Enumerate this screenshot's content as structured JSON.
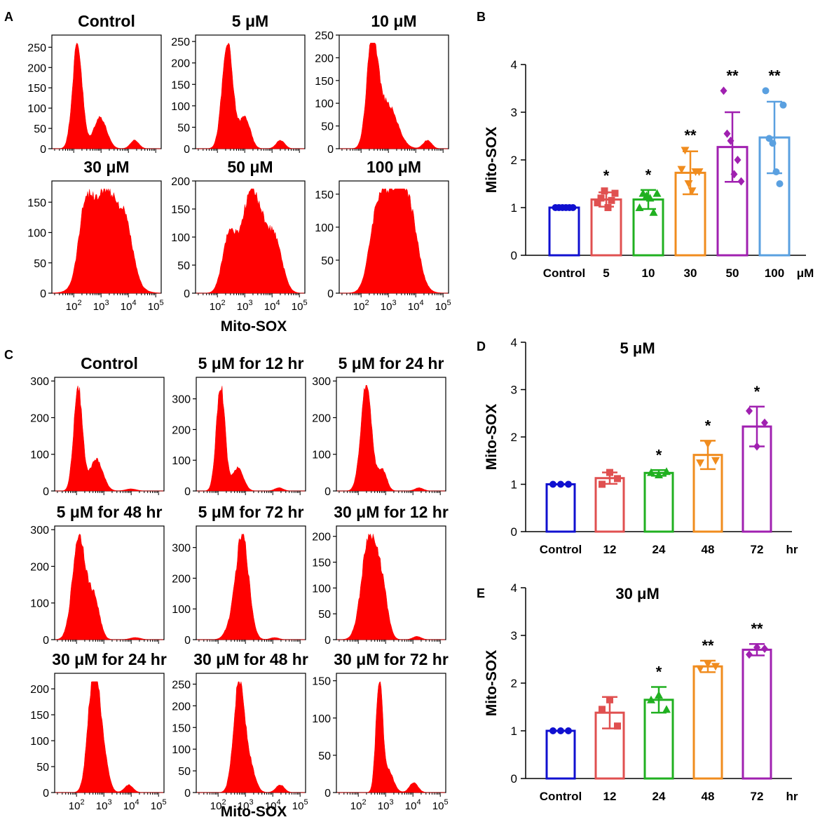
{
  "figure": {
    "colors": {
      "fill": "#ff0000",
      "axis": "#000000"
    },
    "panels": {
      "A": {
        "letter": "A",
        "xlabel": "Mito-SOX",
        "xticks": [
          "10^2",
          "10^3",
          "10^4",
          "10^5"
        ],
        "histograms": [
          {
            "title": "Control",
            "yticks": [
              0,
              50,
              100,
              150,
              200,
              250
            ]
          },
          {
            "title": "5 μM",
            "yticks": [
              0,
              50,
              100,
              150,
              200,
              250
            ]
          },
          {
            "title": "10 μM",
            "yticks": [
              0,
              50,
              100,
              150,
              200,
              250
            ]
          },
          {
            "title": "30 μM",
            "yticks": [
              0,
              50,
              100,
              150
            ]
          },
          {
            "title": "50 μM",
            "yticks": [
              0,
              50,
              100,
              150,
              200
            ]
          },
          {
            "title": "100 μM",
            "yticks": [
              0,
              50,
              100,
              150
            ]
          }
        ]
      },
      "C": {
        "letter": "C",
        "xlabel": "Mito-SOX",
        "xticks": [
          "10^2",
          "10^3",
          "10^4",
          "10^5"
        ],
        "histograms": [
          {
            "title": "Control",
            "yticks": [
              0,
              100,
              200,
              300
            ]
          },
          {
            "title": "5 μM for 12 hr",
            "yticks": [
              0,
              100,
              200,
              300
            ]
          },
          {
            "title": "5 μM for 24 hr",
            "yticks": [
              0,
              100,
              200,
              300
            ]
          },
          {
            "title": "5 μM for 48 hr",
            "yticks": [
              0,
              100,
              200,
              300
            ]
          },
          {
            "title": "5 μM for 72 hr",
            "yticks": [
              0,
              100,
              200,
              300
            ]
          },
          {
            "title": "30 μM for 12 hr",
            "yticks": [
              0,
              50,
              100,
              150,
              200
            ]
          },
          {
            "title": "30 μM for 24 hr",
            "yticks": [
              0,
              50,
              100,
              150,
              200
            ]
          },
          {
            "title": "30 μM for 48 hr",
            "yticks": [
              0,
              50,
              100,
              150,
              200,
              250
            ]
          },
          {
            "title": "30 μM for 72 hr",
            "yticks": [
              0,
              50,
              100,
              150
            ]
          }
        ]
      }
    }
  },
  "chart_data": [
    {
      "panel": "B",
      "type": "bar",
      "title": "",
      "ylabel": "Mito-SOX",
      "unit": "μM",
      "ylim": [
        0,
        4
      ],
      "yticks": [
        0,
        1,
        2,
        3,
        4
      ],
      "categories": [
        "Control",
        "5",
        "10",
        "30",
        "50",
        "100"
      ],
      "values": [
        1.0,
        1.17,
        1.17,
        1.73,
        2.27,
        2.47
      ],
      "errors": [
        0.0,
        0.15,
        0.2,
        0.45,
        0.73,
        0.75
      ],
      "points": [
        [
          1,
          1,
          1,
          1,
          1,
          1
        ],
        [
          1.1,
          1.2,
          1.35,
          1.0,
          1.15,
          1.3
        ],
        [
          1.0,
          1.3,
          1.25,
          1.2,
          0.9,
          1.3
        ],
        [
          1.8,
          2.2,
          1.5,
          1.35,
          1.75,
          1.75
        ],
        [
          3.45,
          2.55,
          2.4,
          1.7,
          2.0,
          1.55
        ],
        [
          3.45,
          2.45,
          2.35,
          1.75,
          1.5,
          3.15
        ]
      ],
      "significance": [
        "",
        "*",
        "*",
        "**",
        "**",
        "**"
      ],
      "colors": [
        "#1010d0",
        "#e05050",
        "#20b020",
        "#f08c1e",
        "#a020b0",
        "#5aa0e0"
      ]
    },
    {
      "panel": "D",
      "type": "bar",
      "title": "5 μM",
      "ylabel": "Mito-SOX",
      "unit": "hr",
      "ylim": [
        0,
        4
      ],
      "yticks": [
        0,
        1,
        2,
        3,
        4
      ],
      "categories": [
        "Control",
        "12",
        "24",
        "48",
        "72"
      ],
      "values": [
        1.0,
        1.13,
        1.24,
        1.62,
        2.22
      ],
      "errors": [
        0.0,
        0.12,
        0.06,
        0.3,
        0.42
      ],
      "points": [
        [
          1,
          1,
          1
        ],
        [
          1.0,
          1.25,
          1.12
        ],
        [
          1.25,
          1.2,
          1.27
        ],
        [
          1.45,
          1.85,
          1.5
        ],
        [
          2.55,
          1.8,
          2.3
        ]
      ],
      "significance": [
        "",
        "",
        "*",
        "*",
        "*"
      ],
      "colors": [
        "#1010d0",
        "#e05050",
        "#20b020",
        "#f08c1e",
        "#a020b0"
      ]
    },
    {
      "panel": "E",
      "type": "bar",
      "title": "30 μM",
      "ylabel": "Mito-SOX",
      "unit": "hr",
      "ylim": [
        0,
        4
      ],
      "yticks": [
        0,
        1,
        2,
        3,
        4
      ],
      "categories": [
        "Control",
        "12",
        "24",
        "48",
        "72"
      ],
      "values": [
        1.0,
        1.38,
        1.65,
        2.35,
        2.7
      ],
      "errors": [
        0.0,
        0.33,
        0.27,
        0.12,
        0.12
      ],
      "points": [
        [
          1,
          1,
          1
        ],
        [
          1.45,
          1.65,
          1.1
        ],
        [
          1.65,
          1.75,
          1.45
        ],
        [
          2.3,
          2.4,
          2.35
        ],
        [
          2.6,
          2.75,
          2.72
        ]
      ],
      "significance": [
        "",
        "",
        "*",
        "**",
        "**"
      ],
      "colors": [
        "#1010d0",
        "#e05050",
        "#20b020",
        "#f08c1e",
        "#a020b0"
      ]
    }
  ]
}
